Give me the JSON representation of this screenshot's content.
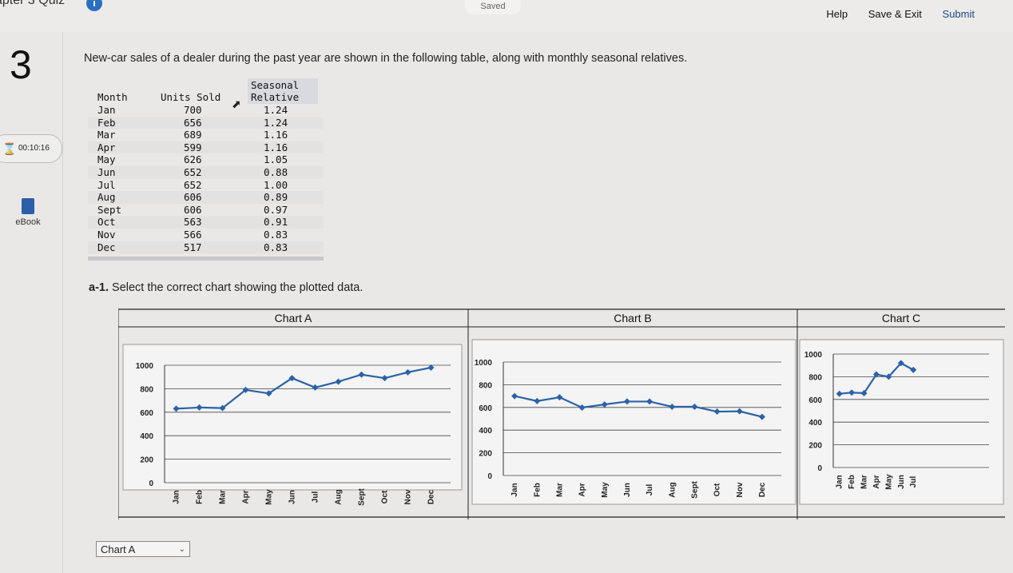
{
  "header": {
    "quiz_title": "apter 3 Quiz",
    "info_icon": "info-icon",
    "saved_label": "Saved",
    "help_label": "Help",
    "save_exit_label": "Save & Exit",
    "submit_label": "Submit"
  },
  "sidebar": {
    "question_number": "3",
    "timer_value": "00:10:16",
    "timer_icon": "hourglass-icon",
    "ebook_label": "eBook",
    "ebook_icon": "book-icon"
  },
  "question": {
    "prompt": "New-car sales of a dealer during the past year are shown in the following table, along with monthly seasonal relatives.",
    "table": {
      "headers": [
        "Month",
        "Units Sold",
        "Seasonal",
        "Relative"
      ],
      "rows": [
        [
          "Jan",
          "700",
          "1.24"
        ],
        [
          "Feb",
          "656",
          "1.24"
        ],
        [
          "Mar",
          "689",
          "1.16"
        ],
        [
          "Apr",
          "599",
          "1.16"
        ],
        [
          "May",
          "626",
          "1.05"
        ],
        [
          "Jun",
          "652",
          "0.88"
        ],
        [
          "Jul",
          "652",
          "1.00"
        ],
        [
          "Aug",
          "606",
          "0.89"
        ],
        [
          "Sept",
          "606",
          "0.97"
        ],
        [
          "Oct",
          "563",
          "0.91"
        ],
        [
          "Nov",
          "566",
          "0.83"
        ],
        [
          "Dec",
          "517",
          "0.83"
        ]
      ]
    },
    "subpart_label": "a-1.",
    "subpart_text": "Select the correct chart showing the plotted data.",
    "answer_selected": "Chart A"
  },
  "chart_data": [
    {
      "type": "line",
      "title": "Chart A",
      "categories": [
        "Jan",
        "Feb",
        "Mar",
        "Apr",
        "May",
        "Jun",
        "Jul",
        "Aug",
        "Sept",
        "Oct",
        "Nov",
        "Dec"
      ],
      "values": [
        630,
        640,
        635,
        790,
        760,
        890,
        810,
        860,
        920,
        890,
        940,
        980
      ],
      "ylim": [
        0,
        1000
      ],
      "yticks": [
        0,
        200,
        400,
        600,
        800,
        1000
      ],
      "grid": true,
      "color": "#2a62a8"
    },
    {
      "type": "line",
      "title": "Chart B",
      "categories": [
        "Jan",
        "Feb",
        "Mar",
        "Apr",
        "May",
        "Jun",
        "Jul",
        "Aug",
        "Sept",
        "Oct",
        "Nov",
        "Dec"
      ],
      "values": [
        700,
        656,
        689,
        599,
        626,
        652,
        652,
        606,
        606,
        563,
        566,
        517
      ],
      "ylim": [
        0,
        1000
      ],
      "yticks": [
        0,
        200,
        400,
        600,
        800,
        1000
      ],
      "grid": true,
      "color": "#2a62a8"
    },
    {
      "type": "line",
      "title": "Chart C",
      "categories": [
        "Jan",
        "Feb",
        "Mar",
        "Apr",
        "May",
        "Jun",
        "Jul"
      ],
      "values": [
        650,
        660,
        655,
        820,
        800,
        920,
        860
      ],
      "ylim": [
        0,
        1000
      ],
      "yticks": [
        0,
        200,
        400,
        600,
        800,
        1000
      ],
      "grid": true,
      "color": "#2a62a8"
    }
  ]
}
